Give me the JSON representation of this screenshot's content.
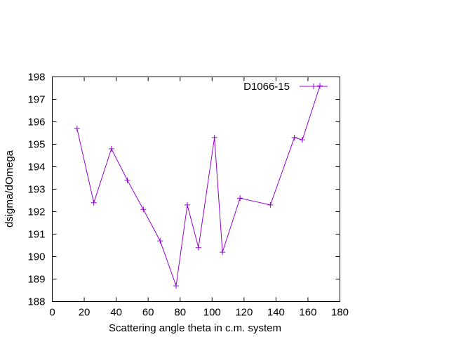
{
  "chart_data": {
    "type": "line",
    "xlabel": "Scattering angle theta in c.m. system",
    "ylabel": "dsigma/dOmega",
    "xlim": [
      0,
      180
    ],
    "ylim": [
      188,
      198
    ],
    "xticks": [
      0,
      20,
      40,
      60,
      80,
      100,
      120,
      140,
      160,
      180
    ],
    "yticks": [
      188,
      189,
      190,
      191,
      192,
      193,
      194,
      195,
      196,
      197,
      198
    ],
    "grid": false,
    "legend_position": "top-right",
    "series": [
      {
        "name": "D1066-15",
        "color": "#9400d3",
        "marker": "plus",
        "x": [
          15.5,
          26,
          37,
          47,
          57,
          67.5,
          77.5,
          84.5,
          91.5,
          101.5,
          106.5,
          117.5,
          136.5,
          151.5,
          156.5,
          167.5
        ],
        "y": [
          195.7,
          192.4,
          194.8,
          193.4,
          192.1,
          190.7,
          188.7,
          192.3,
          190.4,
          195.3,
          190.2,
          192.6,
          192.3,
          195.3,
          195.2,
          197.6
        ]
      }
    ]
  }
}
